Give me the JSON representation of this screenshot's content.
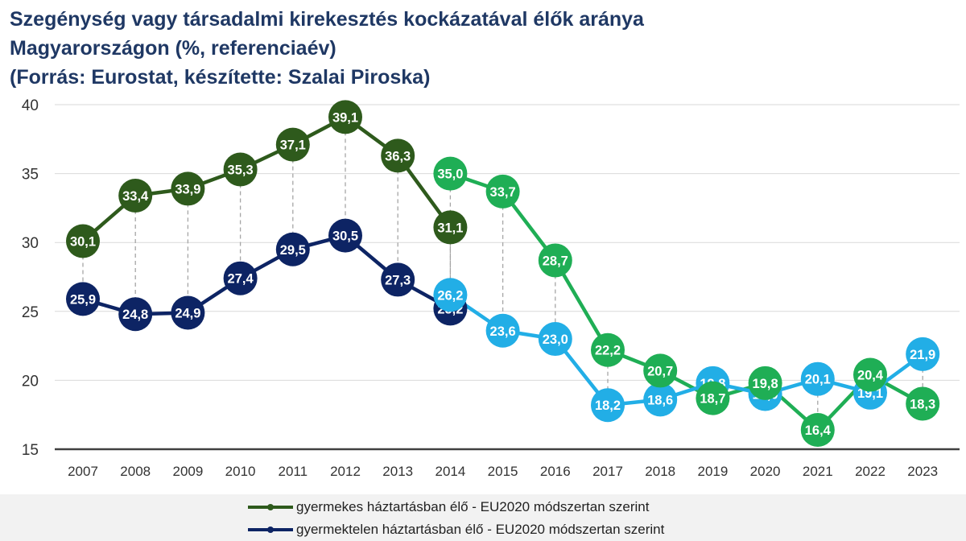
{
  "colors": {
    "series_1": "#2e5a1c",
    "series_2": "#0d2464",
    "series_3": "#1fae55",
    "series_4": "#22aee6",
    "grid": "#d9d9d9",
    "axis": "#404040",
    "title": "#1f3864"
  },
  "chart_data": {
    "type": "line",
    "title_lines": [
      "Szegénység vagy társadalmi kirekesztés kockázatával élők aránya",
      "Magyarországon (%, referenciaév)",
      "(Forrás: Eurostat, készítette: Szalai Piroska)"
    ],
    "x": [
      "2007",
      "2008",
      "2009",
      "2010",
      "2011",
      "2012",
      "2013",
      "2014",
      "2015",
      "2016",
      "2017",
      "2018",
      "2019",
      "2020",
      "2021",
      "2022",
      "2023"
    ],
    "ylim": [
      15,
      40
    ],
    "yticks": [
      "15",
      "20",
      "25",
      "30",
      "35",
      "40"
    ],
    "grid": true,
    "legend_position": "bottom",
    "series": [
      {
        "name": "gyermekes háztartásban élő - EU2020 módszertan szerint",
        "values": [
          30.1,
          33.4,
          33.9,
          35.3,
          37.1,
          39.1,
          36.3,
          31.1,
          null,
          null,
          null,
          null,
          null,
          null,
          null,
          null,
          null
        ],
        "labels": [
          "30,1",
          "33,4",
          "33,9",
          "35,3",
          "37,1",
          "39,1",
          "36,3",
          "31,1",
          "",
          "",
          "",
          "",
          "",
          "",
          "",
          "",
          ""
        ]
      },
      {
        "name": "gyermektelen háztartásban élő - EU2020 módszertan szerint",
        "values": [
          25.9,
          24.8,
          24.9,
          27.4,
          29.5,
          30.5,
          27.3,
          25.2,
          null,
          null,
          null,
          null,
          null,
          null,
          null,
          null,
          null
        ],
        "labels": [
          "25,9",
          "24,8",
          "24,9",
          "27,4",
          "29,5",
          "30,5",
          "27,3",
          "25,2",
          "",
          "",
          "",
          "",
          "",
          "",
          "",
          "",
          ""
        ]
      },
      {
        "values": [
          null,
          null,
          null,
          null,
          null,
          null,
          null,
          35.0,
          33.7,
          28.7,
          22.2,
          20.7,
          18.7,
          19.8,
          16.4,
          20.4,
          18.3
        ],
        "labels": [
          "",
          "",
          "",
          "",
          "",
          "",
          "",
          "35,0",
          "33,7",
          "28,7",
          "22,2",
          "20,7",
          "18,7",
          "19,8",
          "16,4",
          "20,4",
          "18,3"
        ]
      },
      {
        "values": [
          null,
          null,
          null,
          null,
          null,
          null,
          null,
          26.2,
          23.6,
          23.0,
          18.2,
          18.6,
          19.8,
          19.0,
          20.1,
          19.1,
          21.9
        ],
        "labels": [
          "",
          "",
          "",
          "",
          "",
          "",
          "",
          "26,2",
          "23,6",
          "23,0",
          "18,2",
          "18,6",
          "19,8",
          "19,0",
          "20,1",
          "19,1",
          "21,9"
        ]
      }
    ]
  }
}
